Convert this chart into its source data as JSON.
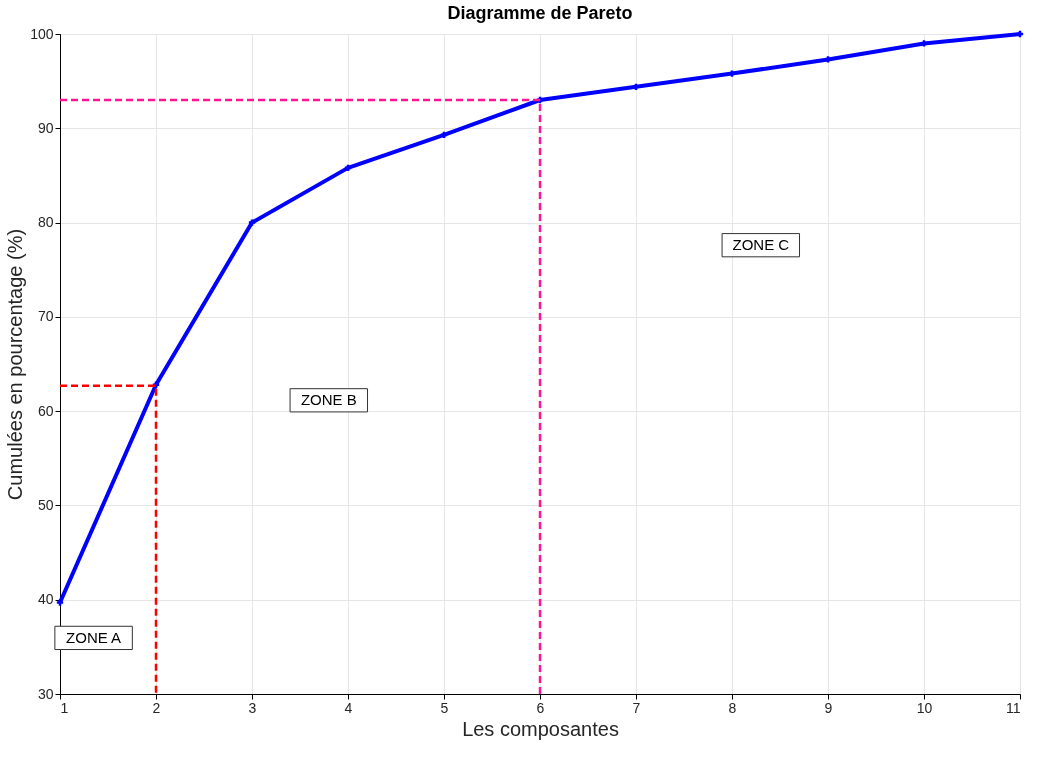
{
  "chart_data": {
    "type": "line",
    "title": "Diagramme de Pareto",
    "xlabel": "Les composantes",
    "ylabel": "Cumulées en pourcentage (%)",
    "x": [
      1,
      2,
      3,
      4,
      5,
      6,
      7,
      8,
      9,
      10,
      11
    ],
    "series": [
      {
        "color": "#0000ff",
        "values": [
          39.7,
          62.8,
          80.0,
          85.8,
          89.3,
          93.0,
          94.4,
          95.8,
          97.3,
          99.0,
          100
        ],
        "marker": "cross",
        "line_style": "solid"
      },
      {
        "color": "#ff0000",
        "x": [
          1,
          2,
          2
        ],
        "values": [
          62.7,
          62.7,
          30
        ],
        "marker": "none",
        "line_style": "dashed"
      },
      {
        "color": "#ff1493",
        "x": [
          1,
          6,
          6
        ],
        "values": [
          93.0,
          93.0,
          30
        ],
        "marker": "none",
        "line_style": "dashed"
      }
    ],
    "annotations": [
      "ZONE A",
      "ZONE B",
      "ZONE C"
    ],
    "xlim": [
      1,
      11
    ],
    "xticks": [
      1,
      2,
      3,
      4,
      5,
      6,
      7,
      8,
      9,
      10,
      11
    ],
    "ylim": [
      30,
      100
    ],
    "yticks": [
      30,
      40,
      50,
      60,
      70,
      80,
      90,
      100
    ],
    "grid": true
  }
}
